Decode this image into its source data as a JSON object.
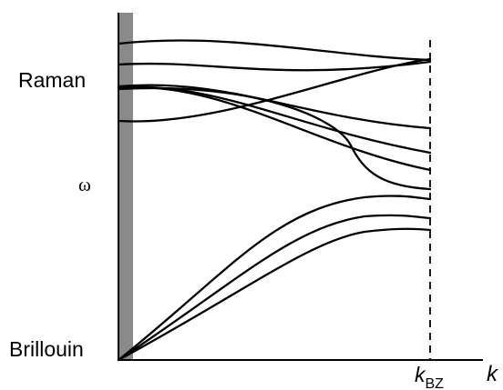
{
  "labels": {
    "raman": "Raman",
    "omega": "ω",
    "brillouin": "Brillouin",
    "kbz_main": "k",
    "kbz_sub": "BZ",
    "k_axis": "k"
  },
  "colors": {
    "line": "#000000",
    "gamma_band": "#8a8a8a",
    "background": "#ffffff"
  }
}
